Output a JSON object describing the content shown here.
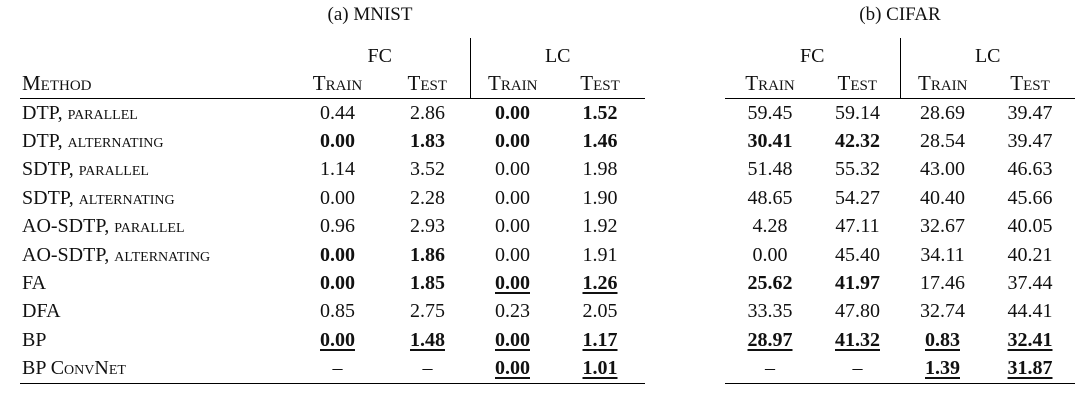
{
  "tables": [
    {
      "caption": "(a) MNIST",
      "column_header": "Method",
      "groups": [
        "FC",
        "LC"
      ],
      "subcolumns": [
        "Train",
        "Test",
        "Train",
        "Test"
      ],
      "rows": [
        [
          "DTP, parallel",
          "0.44",
          "2.86",
          "0.00",
          "1.52"
        ],
        [
          "DTP, alternating",
          "0.00",
          "1.83",
          "0.00",
          "1.46"
        ],
        [
          "SDTP, parallel",
          "1.14",
          "3.52",
          "0.00",
          "1.98"
        ],
        [
          "SDTP, alternating",
          "0.00",
          "2.28",
          "0.00",
          "1.90"
        ],
        [
          "AO-SDTP, parallel",
          "0.96",
          "2.93",
          "0.00",
          "1.92"
        ],
        [
          "AO-SDTP, alternating",
          "0.00",
          "1.86",
          "0.00",
          "1.91"
        ],
        [
          "FA",
          "0.00",
          "1.85",
          "0.00",
          "1.26"
        ],
        [
          "DFA",
          "0.85",
          "2.75",
          "0.23",
          "2.05"
        ],
        [
          "BP",
          "0.00",
          "1.48",
          "0.00",
          "1.17"
        ],
        [
          "BP ConvNet",
          "–",
          "–",
          "0.00",
          "1.01"
        ]
      ]
    },
    {
      "caption": "(b) CIFAR",
      "groups": [
        "FC",
        "LC"
      ],
      "subcolumns": [
        "Train",
        "Test",
        "Train",
        "Test"
      ],
      "rows": [
        [
          "59.45",
          "59.14",
          "28.69",
          "39.47"
        ],
        [
          "30.41",
          "42.32",
          "28.54",
          "39.47"
        ],
        [
          "51.48",
          "55.32",
          "43.00",
          "46.63"
        ],
        [
          "48.65",
          "54.27",
          "40.40",
          "45.66"
        ],
        [
          "4.28",
          "47.11",
          "32.67",
          "40.05"
        ],
        [
          "0.00",
          "45.40",
          "34.11",
          "40.21"
        ],
        [
          "25.62",
          "41.97",
          "17.46",
          "37.44"
        ],
        [
          "33.35",
          "47.80",
          "32.74",
          "44.41"
        ],
        [
          "28.97",
          "41.32",
          "0.83",
          "32.41"
        ],
        [
          "–",
          "–",
          "1.39",
          "31.87"
        ]
      ]
    }
  ]
}
